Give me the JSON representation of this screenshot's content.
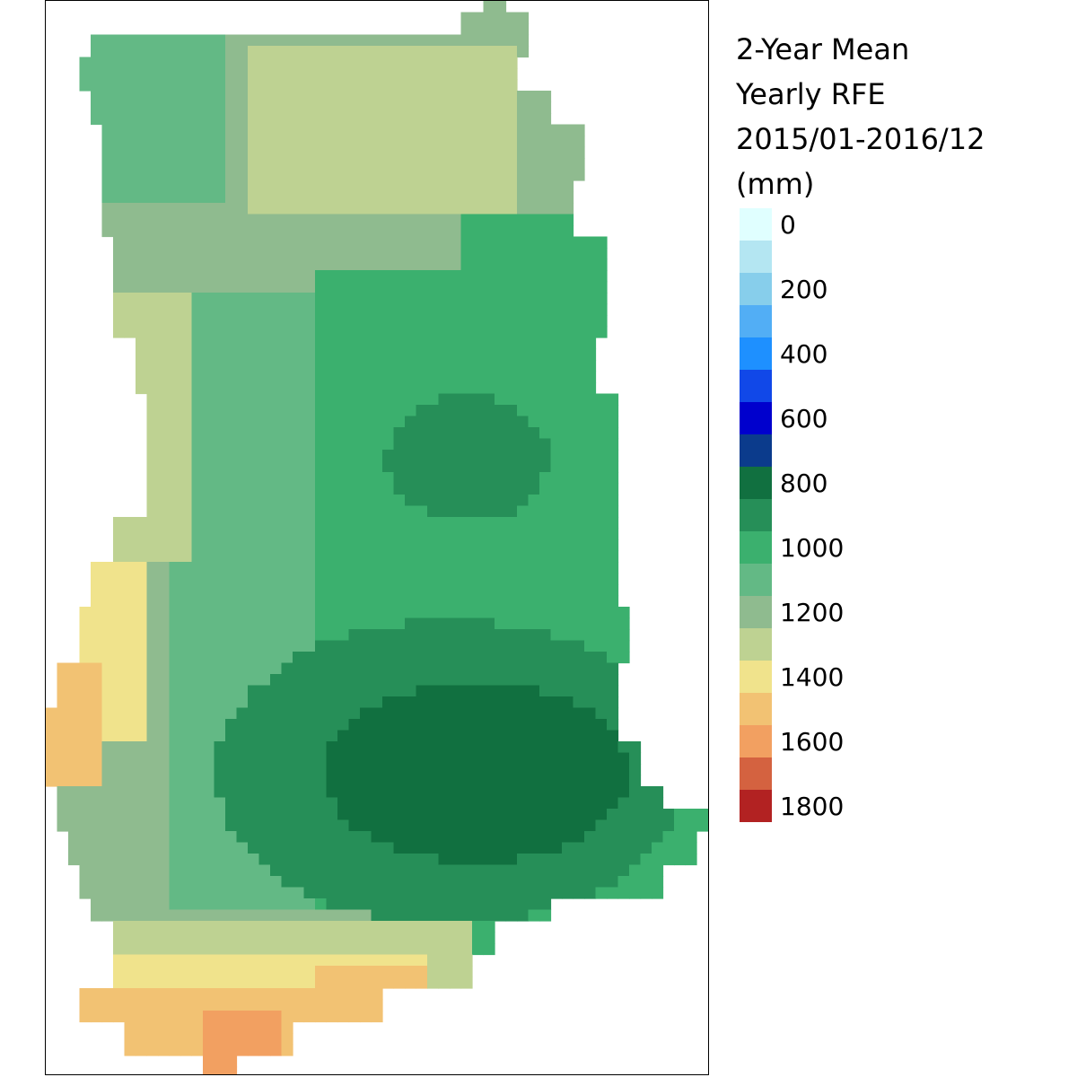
{
  "legend": {
    "title_lines": [
      "2-Year Mean",
      "Yearly RFE",
      "2015/01-2016/12",
      "(mm)"
    ],
    "colors": [
      "#e0ffff",
      "#b4e6f2",
      "#87ceeb",
      "#52aef5",
      "#1e90ff",
      "#1148e8",
      "#0000cd",
      "#0b3b8c",
      "#117040",
      "#268f58",
      "#3bb06e",
      "#63b985",
      "#8fbb8f",
      "#bed292",
      "#f0e38c",
      "#f2c273",
      "#f2a061",
      "#d46240",
      "#b22222"
    ],
    "tick_labels": [
      "0",
      "200",
      "400",
      "600",
      "800",
      "1000",
      "1200",
      "1400",
      "1600",
      "1800"
    ]
  },
  "map": {
    "region": "Ghana",
    "variable": "RFE rainfall estimate, 2-year mean yearly total",
    "classes": {
      "a": 1800,
      "b": 1700,
      "c": 1600,
      "d": 1500,
      "e": 1400,
      "f": 1300,
      "g": 1200,
      "h": 1100,
      "i": 1000,
      "j": 900,
      "k": 800
    }
  }
}
